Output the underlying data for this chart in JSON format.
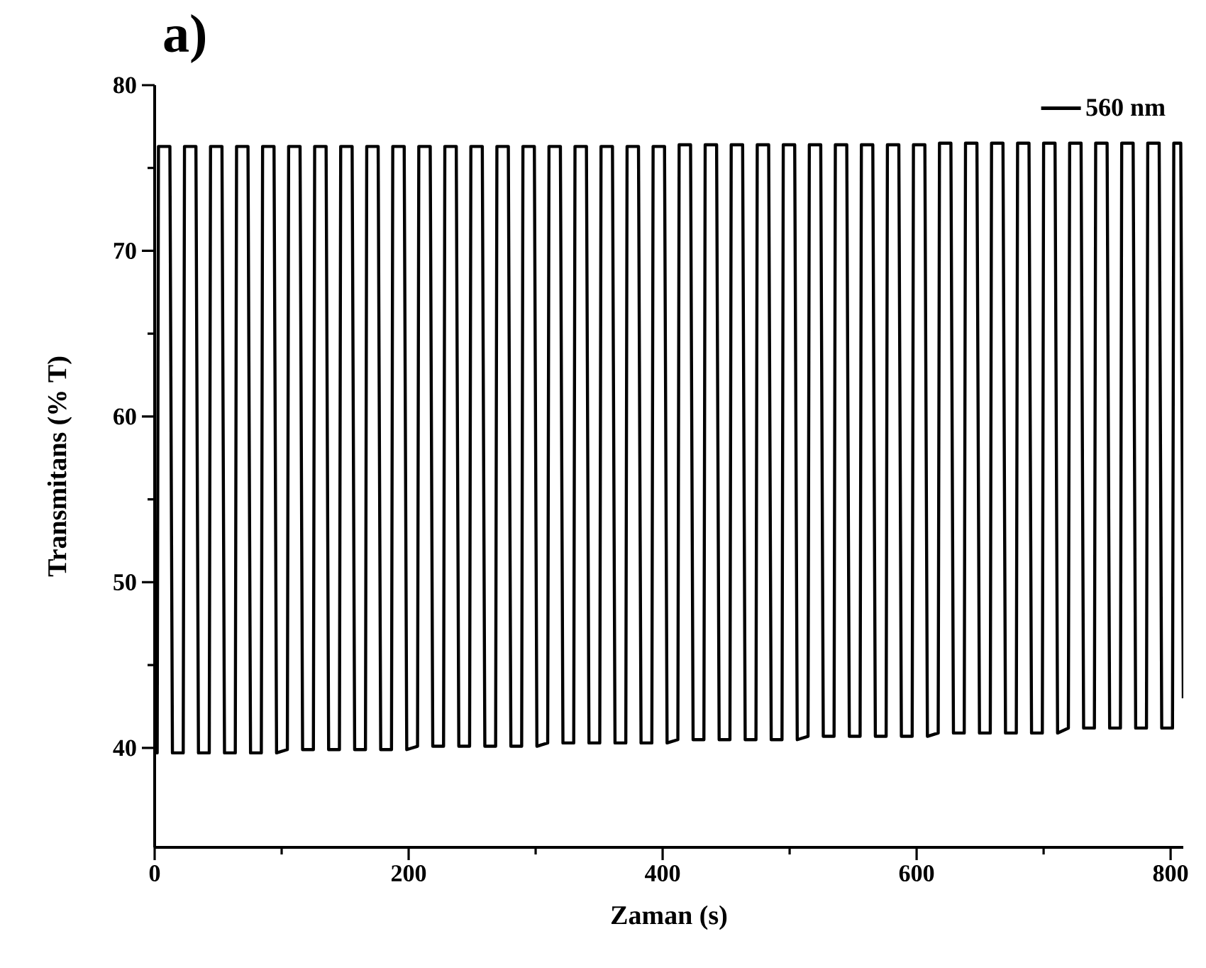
{
  "chart_data": {
    "type": "line",
    "title": "a)",
    "xlabel": "Zaman (s)",
    "ylabel": "Transmitans (% T)",
    "xlim": [
      0,
      810
    ],
    "ylim": [
      34,
      80
    ],
    "xticks": [
      0,
      200,
      400,
      600,
      800
    ],
    "yticks": [
      40,
      50,
      60,
      70,
      80
    ],
    "legend": "top right",
    "marker": "none",
    "line_style": "solid",
    "grid": false,
    "series": [
      {
        "name": "560 nm",
        "color": "#000000",
        "x": [
          0,
          2,
          3,
          12,
          14,
          22.5,
          23.5,
          32.5,
          34.5,
          43,
          44,
          53,
          55,
          63.5,
          64.5,
          73.5,
          75.5,
          84,
          85,
          94,
          96,
          104.5,
          105.5,
          114.5,
          116.5,
          125,
          126,
          135,
          137,
          145.5,
          146.5,
          155.5,
          157.5,
          166,
          167,
          176,
          178,
          186.5,
          187.5,
          196.5,
          198.5,
          207,
          208,
          217,
          219,
          227.5,
          228.5,
          237.5,
          239.5,
          248,
          249,
          258,
          260,
          268.5,
          269.5,
          278.5,
          280.5,
          289,
          290,
          299,
          301,
          309.5,
          310.5,
          319.5,
          321.5,
          330,
          331,
          340,
          342,
          350.5,
          351.5,
          360.5,
          362.5,
          371,
          372,
          381,
          383,
          391.5,
          392.5,
          401.5,
          403.5,
          412,
          413,
          422,
          424,
          432.5,
          433.5,
          442.5,
          444.5,
          453,
          454,
          463,
          465,
          473.5,
          474.5,
          483.5,
          485.5,
          494,
          495,
          504,
          506,
          514.5,
          515.5,
          524.5,
          526.5,
          535,
          536,
          545,
          547,
          555.5,
          556.5,
          565.5,
          567.5,
          576,
          577,
          586,
          588,
          596.5,
          597.5,
          606.5,
          608.5,
          617,
          618,
          627,
          629,
          637.5,
          638.5,
          647.5,
          649.5,
          658,
          659,
          668,
          670,
          678.5,
          679.5,
          688.5,
          690.5,
          699,
          700,
          709,
          711,
          719.5,
          720.5,
          729.5,
          731.5,
          740,
          741,
          750,
          752,
          760.5,
          761.5,
          770.5,
          772.5,
          781,
          782,
          791,
          793,
          801.5,
          802.5,
          808,
          810
        ],
        "values": [
          39.7,
          39.7,
          76.3,
          76.3,
          39.7,
          39.7,
          76.3,
          76.3,
          39.7,
          39.7,
          76.3,
          76.3,
          39.7,
          39.7,
          76.3,
          76.3,
          39.7,
          39.7,
          76.3,
          76.3,
          39.7,
          39.9,
          76.3,
          76.3,
          39.9,
          39.9,
          76.3,
          76.3,
          39.9,
          39.9,
          76.3,
          76.3,
          39.9,
          39.9,
          76.3,
          76.3,
          39.9,
          39.9,
          76.3,
          76.3,
          39.9,
          40.1,
          76.3,
          76.3,
          40.1,
          40.1,
          76.3,
          76.3,
          40.1,
          40.1,
          76.3,
          76.3,
          40.1,
          40.1,
          76.3,
          76.3,
          40.1,
          40.1,
          76.3,
          76.3,
          40.1,
          40.3,
          76.3,
          76.3,
          40.3,
          40.3,
          76.3,
          76.3,
          40.3,
          40.3,
          76.3,
          76.3,
          40.3,
          40.3,
          76.3,
          76.3,
          40.3,
          40.3,
          76.3,
          76.3,
          40.3,
          40.5,
          76.4,
          76.4,
          40.5,
          40.5,
          76.4,
          76.4,
          40.5,
          40.5,
          76.4,
          76.4,
          40.5,
          40.5,
          76.4,
          76.4,
          40.5,
          40.5,
          76.4,
          76.4,
          40.5,
          40.7,
          76.4,
          76.4,
          40.7,
          40.7,
          76.4,
          76.4,
          40.7,
          40.7,
          76.4,
          76.4,
          40.7,
          40.7,
          76.4,
          76.4,
          40.7,
          40.7,
          76.4,
          76.4,
          40.7,
          40.9,
          76.5,
          76.5,
          40.9,
          40.9,
          76.5,
          76.5,
          40.9,
          40.9,
          76.5,
          76.5,
          40.9,
          40.9,
          76.5,
          76.5,
          40.9,
          40.9,
          76.5,
          76.5,
          40.9,
          41.2,
          76.5,
          76.5,
          41.2,
          41.2,
          76.5,
          76.5,
          41.2,
          41.2,
          76.5,
          76.5,
          41.2,
          41.2,
          76.5,
          76.5,
          41.2,
          41.2,
          76.5,
          76.5,
          43
        ]
      }
    ]
  }
}
